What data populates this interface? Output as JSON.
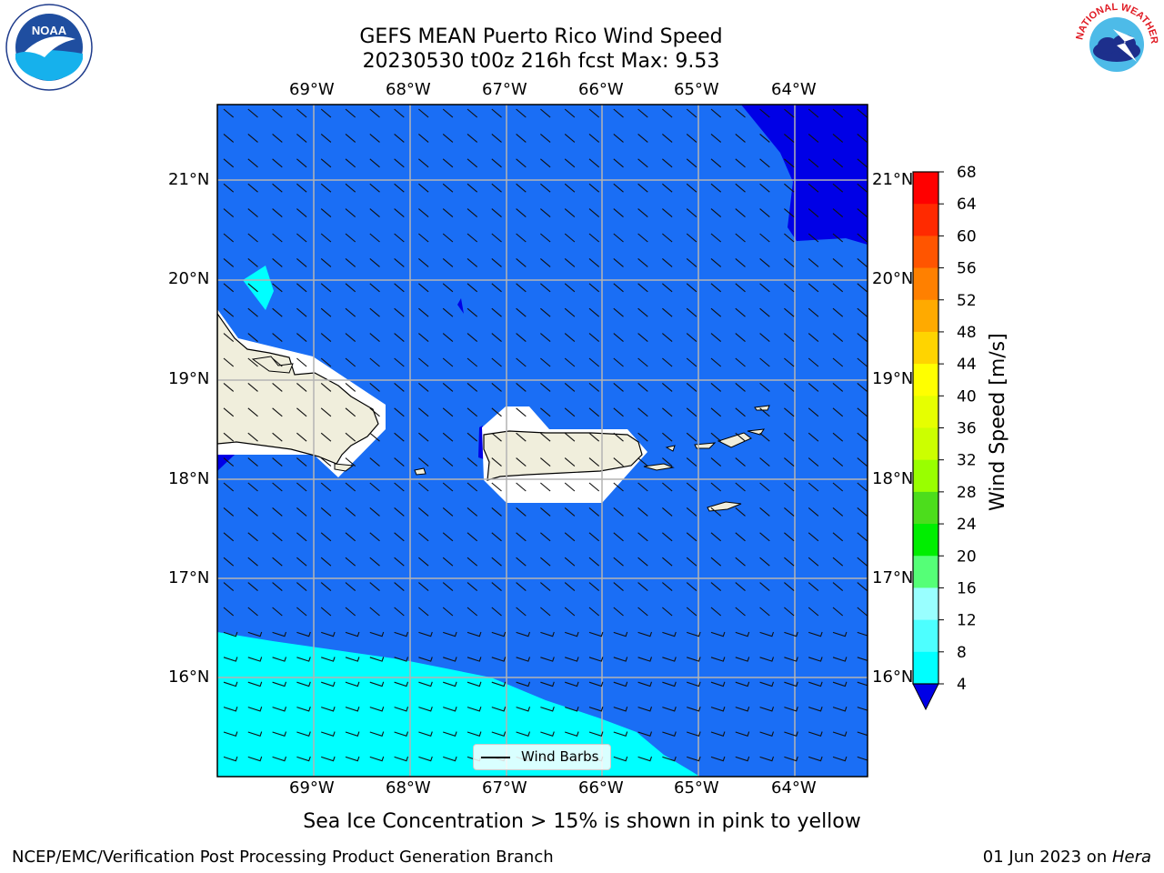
{
  "header": {
    "title_line1": "GEFS MEAN Puerto Rico Wind Speed",
    "title_line2": "20230530 t00z 216h fcst   Max: 9.53"
  },
  "map": {
    "lon_labels": [
      "69°W",
      "68°W",
      "67°W",
      "66°W",
      "65°W",
      "64°W"
    ],
    "lat_labels": [
      "21°N",
      "20°N",
      "19°N",
      "18°N",
      "17°N",
      "16°N"
    ],
    "legend_label": "Wind Barbs",
    "colors": {
      "ocean": "#1a6ef5",
      "light": "#00ffff",
      "dark": "#0000e6",
      "land": "#f0eedc",
      "grid": "#b4b4b4"
    }
  },
  "colorbar": {
    "label": "Wind Speed [m/s]",
    "ticks": [
      "68",
      "64",
      "60",
      "56",
      "52",
      "48",
      "44",
      "40",
      "36",
      "32",
      "28",
      "24",
      "20",
      "16",
      "12",
      "8",
      "4"
    ],
    "colors": [
      "#ff0000",
      "#ff2a00",
      "#ff5500",
      "#ff8000",
      "#ffaa00",
      "#ffd400",
      "#ffff00",
      "#e6ff00",
      "#ccff00",
      "#99ff00",
      "#4cdd1c",
      "#00ee00",
      "#55ff77",
      "#99ffff",
      "#4dffff",
      "#00ffff",
      "#1a6ef5"
    ]
  },
  "subtitle": "Sea Ice Concentration > 15% is shown in pink to yellow",
  "footer": {
    "left": "NCEP/EMC/Verification Post Processing Product Generation Branch",
    "date": "01 Jun 2023 on ",
    "machine": "Hera"
  },
  "logos": {
    "left": "NOAA",
    "right": "NATIONAL WEATHER SERVICE"
  }
}
